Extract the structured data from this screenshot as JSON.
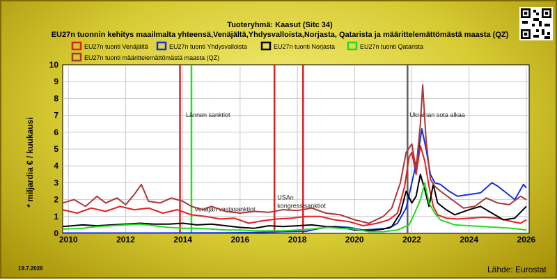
{
  "title": "Tuoteryhmä: Kaasut (Sitc 34)",
  "subtitle": "EU27n tuonnin kehitys maailmalta yhteensä,Venäjältä,Yhdysvalloista,Norjasta, Qatarista ja määrittelemättömästä maasta (QZ)",
  "date_stamp": "19.7.2026",
  "source": "Lähde: Eurostat",
  "chart_data": {
    "type": "line",
    "title": "Tuoteryhmä: Kaasut (Sitc 34)",
    "subtitle": "EU27n tuonnin kehitys maailmalta yhteensä,Venäjältä,Yhdysvalloista,Norjasta, Qatarista ja määrittelemättömästä maasta (QZ)",
    "ylabel": "* miljardia € / kuukausi",
    "xlabel": "",
    "xlim": [
      2009.8,
      2026.1
    ],
    "ylim": [
      0,
      10
    ],
    "xticks": [
      "2010",
      "2012",
      "2014",
      "2016",
      "2018",
      "2020",
      "2022",
      "2024",
      "2026"
    ],
    "yticks": [
      "0",
      "1",
      "2",
      "3",
      "4",
      "5",
      "6",
      "7",
      "8",
      "9",
      "10"
    ],
    "grid": true,
    "legend_position": "top",
    "series": [
      {
        "name": "EU27n tuonti Venäjältä",
        "color": "#e02020",
        "points": [
          [
            2009.8,
            1.4
          ],
          [
            2010.3,
            1.2
          ],
          [
            2010.8,
            1.5
          ],
          [
            2011.3,
            1.3
          ],
          [
            2011.8,
            1.6
          ],
          [
            2012.3,
            1.4
          ],
          [
            2012.8,
            1.5
          ],
          [
            2013.3,
            1.2
          ],
          [
            2013.8,
            1.4
          ],
          [
            2014.3,
            1.1
          ],
          [
            2014.8,
            1.0
          ],
          [
            2015.3,
            0.85
          ],
          [
            2015.8,
            0.9
          ],
          [
            2016.3,
            0.6
          ],
          [
            2016.8,
            0.75
          ],
          [
            2017.3,
            0.85
          ],
          [
            2017.8,
            0.9
          ],
          [
            2018.3,
            1.0
          ],
          [
            2018.8,
            1.0
          ],
          [
            2019.3,
            0.8
          ],
          [
            2019.8,
            0.7
          ],
          [
            2020.3,
            0.45
          ],
          [
            2020.8,
            0.6
          ],
          [
            2021.2,
            0.8
          ],
          [
            2021.5,
            1.2
          ],
          [
            2021.75,
            2.8
          ],
          [
            2021.9,
            4.5
          ],
          [
            2022.0,
            4.8
          ],
          [
            2022.15,
            3.5
          ],
          [
            2022.3,
            5.2
          ],
          [
            2022.45,
            4.3
          ],
          [
            2022.6,
            2.8
          ],
          [
            2022.75,
            1.6
          ],
          [
            2022.9,
            1.1
          ],
          [
            2023.2,
            0.9
          ],
          [
            2023.6,
            0.85
          ],
          [
            2024.0,
            0.9
          ],
          [
            2024.5,
            0.95
          ],
          [
            2025.0,
            0.9
          ],
          [
            2025.5,
            0.7
          ],
          [
            2025.8,
            0.6
          ],
          [
            2026.0,
            0.8
          ]
        ]
      },
      {
        "name": "EU27n tuonti Yhdysvalloista",
        "color": "#1030e0",
        "points": [
          [
            2009.8,
            0.02
          ],
          [
            2013.0,
            0.02
          ],
          [
            2015.5,
            0.03
          ],
          [
            2016.5,
            0.05
          ],
          [
            2017.5,
            0.1
          ],
          [
            2018.3,
            0.12
          ],
          [
            2018.8,
            0.3
          ],
          [
            2019.3,
            0.4
          ],
          [
            2019.8,
            0.35
          ],
          [
            2020.3,
            0.2
          ],
          [
            2020.8,
            0.25
          ],
          [
            2021.2,
            0.3
          ],
          [
            2021.5,
            0.6
          ],
          [
            2021.8,
            1.5
          ],
          [
            2022.0,
            3.0
          ],
          [
            2022.2,
            4.5
          ],
          [
            2022.35,
            6.2
          ],
          [
            2022.5,
            5.0
          ],
          [
            2022.65,
            3.5
          ],
          [
            2022.8,
            3.0
          ],
          [
            2023.0,
            2.9
          ],
          [
            2023.3,
            2.5
          ],
          [
            2023.6,
            2.2
          ],
          [
            2024.0,
            2.3
          ],
          [
            2024.4,
            2.4
          ],
          [
            2024.8,
            3.0
          ],
          [
            2025.0,
            2.8
          ],
          [
            2025.3,
            2.4
          ],
          [
            2025.6,
            2.0
          ],
          [
            2025.9,
            2.9
          ],
          [
            2026.0,
            2.7
          ]
        ]
      },
      {
        "name": "EU27n tuonti Norjasta",
        "color": "#000000",
        "points": [
          [
            2009.8,
            0.4
          ],
          [
            2010.5,
            0.5
          ],
          [
            2011.0,
            0.45
          ],
          [
            2011.5,
            0.5
          ],
          [
            2012.0,
            0.55
          ],
          [
            2012.5,
            0.6
          ],
          [
            2013.0,
            0.55
          ],
          [
            2013.5,
            0.55
          ],
          [
            2014.0,
            0.6
          ],
          [
            2014.5,
            0.5
          ],
          [
            2015.0,
            0.55
          ],
          [
            2015.5,
            0.45
          ],
          [
            2016.0,
            0.35
          ],
          [
            2016.5,
            0.3
          ],
          [
            2017.0,
            0.45
          ],
          [
            2017.5,
            0.4
          ],
          [
            2018.0,
            0.45
          ],
          [
            2018.5,
            0.5
          ],
          [
            2019.0,
            0.4
          ],
          [
            2019.5,
            0.35
          ],
          [
            2020.0,
            0.2
          ],
          [
            2020.5,
            0.15
          ],
          [
            2021.0,
            0.25
          ],
          [
            2021.3,
            0.4
          ],
          [
            2021.6,
            1.2
          ],
          [
            2021.8,
            2.5
          ],
          [
            2022.0,
            1.8
          ],
          [
            2022.15,
            2.2
          ],
          [
            2022.3,
            3.5
          ],
          [
            2022.45,
            2.6
          ],
          [
            2022.6,
            1.6
          ],
          [
            2022.75,
            2.9
          ],
          [
            2022.9,
            1.8
          ],
          [
            2023.2,
            1.4
          ],
          [
            2023.5,
            1.1
          ],
          [
            2024.0,
            1.4
          ],
          [
            2024.4,
            1.6
          ],
          [
            2024.8,
            1.2
          ],
          [
            2025.2,
            0.8
          ],
          [
            2025.6,
            0.9
          ],
          [
            2026.0,
            1.6
          ]
        ]
      },
      {
        "name": "EU27n tuonti Qatarista",
        "color": "#20dd20",
        "points": [
          [
            2009.8,
            0.25
          ],
          [
            2010.5,
            0.3
          ],
          [
            2011.0,
            0.4
          ],
          [
            2011.5,
            0.45
          ],
          [
            2012.0,
            0.5
          ],
          [
            2012.5,
            0.55
          ],
          [
            2013.0,
            0.45
          ],
          [
            2013.5,
            0.35
          ],
          [
            2014.0,
            0.3
          ],
          [
            2014.5,
            0.3
          ],
          [
            2015.0,
            0.25
          ],
          [
            2015.5,
            0.2
          ],
          [
            2016.0,
            0.2
          ],
          [
            2016.5,
            0.15
          ],
          [
            2017.0,
            0.15
          ],
          [
            2017.5,
            0.15
          ],
          [
            2018.0,
            0.2
          ],
          [
            2018.5,
            0.25
          ],
          [
            2019.0,
            0.35
          ],
          [
            2019.5,
            0.3
          ],
          [
            2020.0,
            0.25
          ],
          [
            2020.5,
            0.1
          ],
          [
            2021.0,
            0.1
          ],
          [
            2021.5,
            0.2
          ],
          [
            2021.9,
            0.5
          ],
          [
            2022.1,
            1.2
          ],
          [
            2022.3,
            2.0
          ],
          [
            2022.45,
            3.0
          ],
          [
            2022.6,
            1.8
          ],
          [
            2022.8,
            1.2
          ],
          [
            2023.0,
            0.8
          ],
          [
            2023.5,
            0.5
          ],
          [
            2024.0,
            0.45
          ],
          [
            2024.5,
            0.4
          ],
          [
            2025.0,
            0.35
          ],
          [
            2025.5,
            0.3
          ],
          [
            2026.0,
            0.2
          ]
        ]
      },
      {
        "name": "EU27n tuonti määrittelemättömästä maasta (QZ)",
        "color": "#a83838",
        "points": [
          [
            2009.8,
            1.8
          ],
          [
            2010.2,
            2.0
          ],
          [
            2010.6,
            1.6
          ],
          [
            2011.0,
            2.2
          ],
          [
            2011.3,
            1.8
          ],
          [
            2011.7,
            2.1
          ],
          [
            2012.0,
            1.7
          ],
          [
            2012.3,
            2.3
          ],
          [
            2012.55,
            2.9
          ],
          [
            2012.8,
            1.9
          ],
          [
            2013.2,
            1.8
          ],
          [
            2013.6,
            2.1
          ],
          [
            2014.0,
            1.9
          ],
          [
            2014.3,
            1.6
          ],
          [
            2014.7,
            1.4
          ],
          [
            2015.0,
            1.6
          ],
          [
            2015.5,
            1.3
          ],
          [
            2016.0,
            1.2
          ],
          [
            2016.5,
            1.3
          ],
          [
            2017.0,
            1.25
          ],
          [
            2017.5,
            1.4
          ],
          [
            2018.0,
            1.35
          ],
          [
            2018.5,
            1.5
          ],
          [
            2019.0,
            1.2
          ],
          [
            2019.5,
            1.1
          ],
          [
            2020.0,
            0.8
          ],
          [
            2020.5,
            0.6
          ],
          [
            2021.0,
            1.0
          ],
          [
            2021.3,
            1.5
          ],
          [
            2021.6,
            3.0
          ],
          [
            2021.8,
            4.8
          ],
          [
            2022.0,
            5.3
          ],
          [
            2022.15,
            3.8
          ],
          [
            2022.3,
            6.5
          ],
          [
            2022.38,
            8.8
          ],
          [
            2022.5,
            5.5
          ],
          [
            2022.65,
            3.2
          ],
          [
            2022.8,
            2.8
          ],
          [
            2023.0,
            2.5
          ],
          [
            2023.4,
            2.0
          ],
          [
            2023.8,
            1.5
          ],
          [
            2024.2,
            1.6
          ],
          [
            2024.6,
            2.1
          ],
          [
            2025.0,
            1.8
          ],
          [
            2025.4,
            1.7
          ],
          [
            2025.8,
            2.2
          ],
          [
            2026.0,
            2.0
          ]
        ]
      }
    ],
    "vertical_markers": [
      {
        "x": 2013.9,
        "color": "#e02020",
        "label": ""
      },
      {
        "x": 2014.3,
        "color": "#20dd20",
        "label": "Lännen sanktiot"
      },
      {
        "x": 2017.2,
        "color": "#e02020",
        "label": ""
      },
      {
        "x": 2018.2,
        "color": "#e02020",
        "label": ""
      },
      {
        "x": 2021.85,
        "color": "#606060",
        "label": "Ukrainan sota alkaa"
      }
    ],
    "annotations": [
      {
        "text": "Venäjän vastasanktiot",
        "x": 2014.4,
        "y": 1.3
      },
      {
        "text": "USAn",
        "x": 2017.3,
        "y": 2.0
      },
      {
        "text": "kongressisanktiot",
        "x": 2017.3,
        "y": 1.5
      }
    ]
  }
}
